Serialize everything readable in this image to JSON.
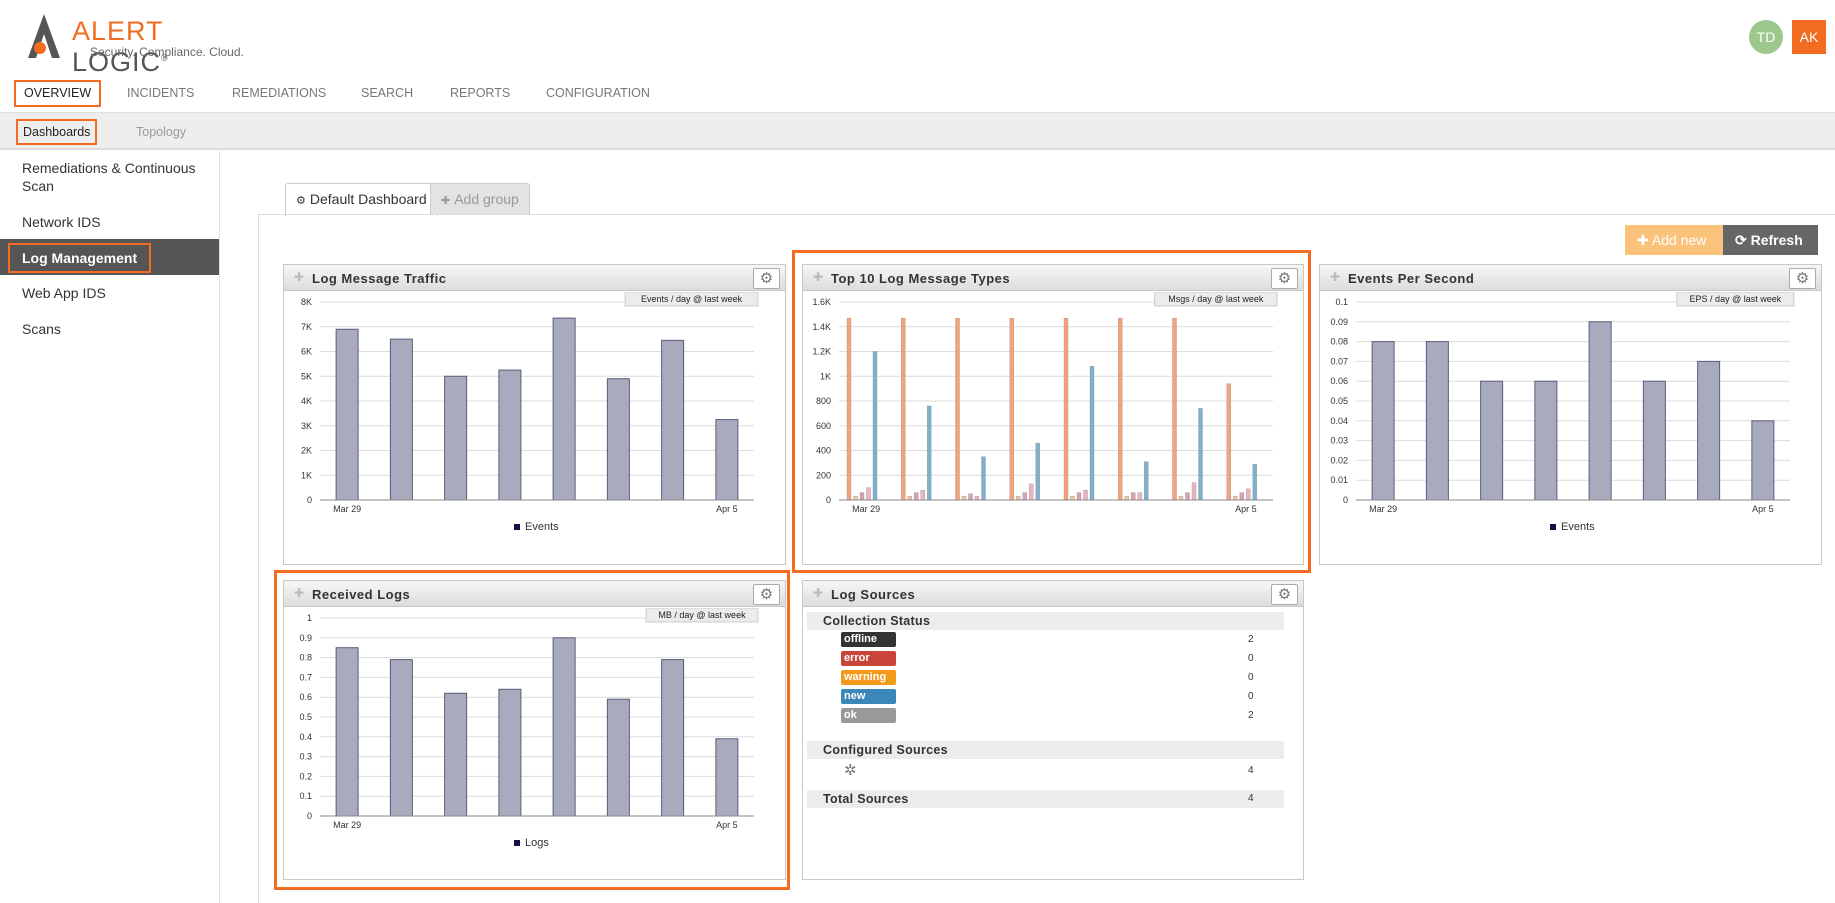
{
  "brand": {
    "name_left": "ALERT",
    "name_right": "LOGIC",
    "mark": "®",
    "tagline": "Security. Compliance. Cloud."
  },
  "user": {
    "avatar1": "TD",
    "avatar2": "AK"
  },
  "main_nav": [
    "OVERVIEW",
    "INCIDENTS",
    "REMEDIATIONS",
    "SEARCH",
    "REPORTS",
    "CONFIGURATION"
  ],
  "sub_nav": [
    "Dashboards",
    "Topology"
  ],
  "sidebar": [
    "Remediations & Continuous Scan",
    "Network IDS",
    "Log Management",
    "Web App IDS",
    "Scans"
  ],
  "tabs": {
    "default": "Default Dashboard",
    "add_group": "Add group"
  },
  "buttons": {
    "add_new": "Add new",
    "refresh": "Refresh"
  },
  "colors": {
    "accent": "#f26d21",
    "bar": "#a8aabd",
    "bar_stroke": "#5b5d78"
  },
  "panels": {
    "log_traffic": {
      "title": "Log Message Traffic",
      "caption": "Events / day @ last week",
      "legend": "Events"
    },
    "top10": {
      "title": "Top 10 Log Message Types",
      "caption": "Msgs / day @ last week"
    },
    "eps": {
      "title": "Events Per Second",
      "caption": "EPS / day @ last week",
      "legend": "Events"
    },
    "received": {
      "title": "Received Logs",
      "caption": "MB / day @ last week",
      "legend": "Logs"
    },
    "sources": {
      "title": "Log Sources",
      "collection_status": "Collection Status",
      "statuses": [
        {
          "label": "offline",
          "count": "2",
          "color": "#333333"
        },
        {
          "label": "error",
          "count": "0",
          "color": "#c9443a"
        },
        {
          "label": "warning",
          "count": "0",
          "color": "#f39a1c"
        },
        {
          "label": "new",
          "count": "0",
          "color": "#3a87b8"
        },
        {
          "label": "ok",
          "count": "2",
          "color": "#999999"
        }
      ],
      "configured_sources": "Configured Sources",
      "configured_count": "4",
      "total_sources": "Total Sources",
      "total_count": "4"
    }
  },
  "chart_data": [
    {
      "type": "bar",
      "title": "Log Message Traffic",
      "categories": [
        "Mar 29",
        "",
        "",
        "",
        "",
        "",
        "",
        "Apr 5"
      ],
      "values": [
        6900,
        6500,
        5000,
        5250,
        7350,
        4900,
        6450,
        3250
      ],
      "ylim": [
        0,
        8000
      ],
      "yticks": [
        "0",
        "1K",
        "2K",
        "3K",
        "4K",
        "5K",
        "6K",
        "7K",
        "8K"
      ],
      "series": [
        {
          "name": "Events",
          "values": [
            6900,
            6500,
            5000,
            5250,
            7350,
            4900,
            6450,
            3250
          ]
        }
      ]
    },
    {
      "type": "bar",
      "title": "Top 10 Log Message Types",
      "categories": [
        "Mar 29",
        "",
        "",
        "",
        "",
        "",
        "",
        "Apr 5"
      ],
      "ylim": [
        0,
        1600
      ],
      "yticks": [
        "0",
        "200",
        "400",
        "600",
        "800",
        "1K",
        "1.2K",
        "1.4K",
        "1.6K"
      ],
      "series": [
        {
          "color": "#f5a27a",
          "values": [
            1470,
            1470,
            1470,
            1470,
            1470,
            1470,
            1470,
            940
          ]
        },
        {
          "color": "#f5c49a",
          "values": [
            30,
            30,
            30,
            30,
            30,
            30,
            30,
            30
          ]
        },
        {
          "color": "#d9a0b0",
          "values": [
            60,
            60,
            50,
            60,
            60,
            60,
            60,
            60
          ]
        },
        {
          "color": "#e8b4c0",
          "values": [
            100,
            80,
            30,
            130,
            80,
            60,
            140,
            90
          ]
        },
        {
          "color": "#7fb0cc",
          "values": [
            1200,
            760,
            350,
            460,
            1080,
            310,
            740,
            290
          ]
        }
      ]
    },
    {
      "type": "bar",
      "title": "Events Per Second",
      "categories": [
        "Mar 29",
        "",
        "",
        "",
        "",
        "",
        "",
        "Apr 5"
      ],
      "values": [
        0.08,
        0.08,
        0.06,
        0.06,
        0.09,
        0.06,
        0.07,
        0.04
      ],
      "ylim": [
        0,
        0.1
      ],
      "yticks": [
        "0",
        "0.01",
        "0.02",
        "0.03",
        "0.04",
        "0.05",
        "0.06",
        "0.07",
        "0.08",
        "0.09",
        "0.1"
      ],
      "series": [
        {
          "name": "Events",
          "values": [
            0.08,
            0.08,
            0.06,
            0.06,
            0.09,
            0.06,
            0.07,
            0.04
          ]
        }
      ]
    },
    {
      "type": "bar",
      "title": "Received Logs",
      "categories": [
        "Mar 29",
        "",
        "",
        "",
        "",
        "",
        "",
        "Apr 5"
      ],
      "values": [
        0.85,
        0.79,
        0.62,
        0.64,
        0.9,
        0.59,
        0.79,
        0.39
      ],
      "ylim": [
        0,
        1
      ],
      "yticks": [
        "0",
        "0.1",
        "0.2",
        "0.3",
        "0.4",
        "0.5",
        "0.6",
        "0.7",
        "0.8",
        "0.9",
        "1"
      ],
      "series": [
        {
          "name": "Logs",
          "values": [
            0.85,
            0.79,
            0.62,
            0.64,
            0.9,
            0.59,
            0.79,
            0.39
          ]
        }
      ]
    }
  ]
}
